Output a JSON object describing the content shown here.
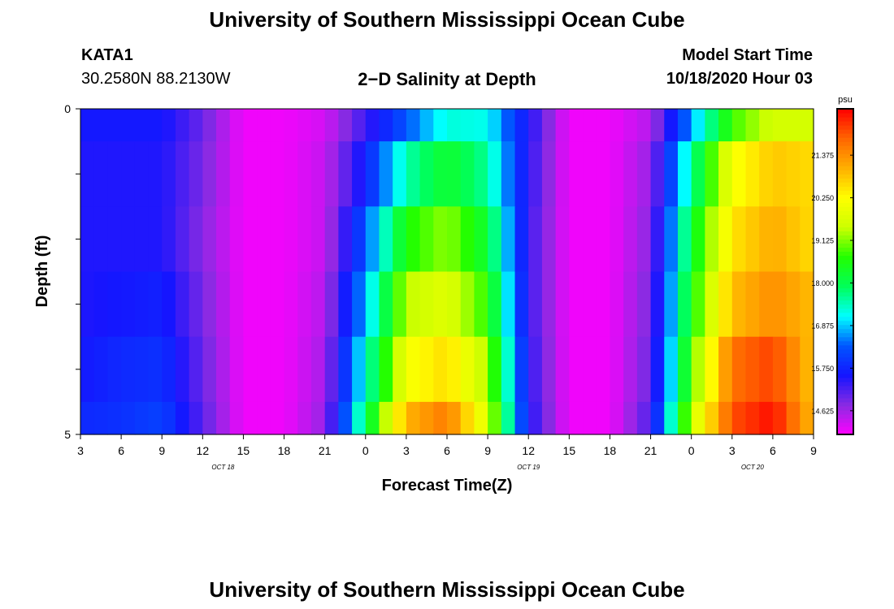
{
  "header": {
    "title": "University of Southern Mississippi Ocean Cube",
    "station": "KATA1",
    "coordinates": "30.2580N 88.2130W",
    "subtitle": "2−D Salinity at Depth",
    "model_start_label": "Model Start Time",
    "model_start_value": "10/18/2020 Hour 03"
  },
  "footer": {
    "title": "University of Southern Mississippi Ocean Cube"
  },
  "chart_data": {
    "type": "heatmap",
    "title": "2−D Salinity at Depth",
    "xlabel": "Forecast Time(Z)",
    "ylabel": "Depth (ft)",
    "x_ticks": [
      "3",
      "6",
      "9",
      "12",
      "15",
      "18",
      "21",
      "0",
      "3",
      "6",
      "9",
      "12",
      "15",
      "18",
      "21",
      "0",
      "3",
      "6",
      "9"
    ],
    "day_labels": [
      {
        "text": "OCT 18",
        "tick_index": 3.5
      },
      {
        "text": "OCT 19",
        "tick_index": 11
      },
      {
        "text": "OCT 20",
        "tick_index": 16.5
      }
    ],
    "y_ticks": [
      "0",
      "",
      "",
      "",
      "",
      "5"
    ],
    "ylim": [
      0,
      5
    ],
    "colorbar": {
      "unit": "psu",
      "ticks": [
        "21.375",
        "20.250",
        "19.125",
        "18.000",
        "16.875",
        "15.750",
        "14.625"
      ],
      "tick_values": [
        21.375,
        20.25,
        19.125,
        18.0,
        16.875,
        15.75,
        14.625
      ],
      "min": 14.0,
      "max": 22.6
    },
    "hours": [
      0,
      3,
      6,
      9,
      12,
      15,
      18,
      21,
      24,
      27,
      30,
      33,
      36,
      39,
      42,
      45,
      48,
      51,
      54
    ],
    "rows": [
      {
        "depth_range": "0-0.5",
        "values": [
          15.6,
          15.6,
          15.6,
          15.0,
          14.1,
          14.1,
          14.3,
          15.3,
          16.3,
          17.3,
          17.2,
          15.5,
          14.1,
          14.1,
          14.5,
          16.7,
          18.8,
          19.6,
          19.6
        ]
      },
      {
        "depth_range": "0.5-1.5",
        "values": [
          15.5,
          15.5,
          15.5,
          14.9,
          14.1,
          14.1,
          14.4,
          15.7,
          17.5,
          18.3,
          17.6,
          15.4,
          14.1,
          14.1,
          14.7,
          17.6,
          20.1,
          20.8,
          20.6
        ]
      },
      {
        "depth_range": "1.5-2.5",
        "values": [
          15.5,
          15.5,
          15.5,
          14.8,
          14.1,
          14.1,
          14.4,
          16.3,
          18.6,
          19.2,
          18.2,
          15.3,
          14.1,
          14.1,
          14.8,
          18.2,
          20.5,
          21.1,
          20.6
        ]
      },
      {
        "depth_range": "2.5-3.5",
        "values": [
          15.5,
          15.6,
          15.7,
          14.9,
          14.1,
          14.1,
          14.5,
          16.8,
          19.4,
          19.8,
          18.7,
          15.3,
          14.1,
          14.1,
          14.9,
          18.5,
          20.9,
          21.4,
          20.9
        ]
      },
      {
        "depth_range": "3.5-4.5",
        "values": [
          15.6,
          15.8,
          15.9,
          15.0,
          14.1,
          14.1,
          14.6,
          17.3,
          20.1,
          20.6,
          19.3,
          15.4,
          14.1,
          14.1,
          15.0,
          18.9,
          21.7,
          22.1,
          20.8
        ]
      },
      {
        "depth_range": "4.5-5",
        "values": [
          15.8,
          15.9,
          16.1,
          15.1,
          14.1,
          14.1,
          14.7,
          17.9,
          21.0,
          21.6,
          19.7,
          15.5,
          14.1,
          14.1,
          15.2,
          19.5,
          22.0,
          22.5,
          20.9
        ]
      }
    ],
    "colormap": [
      "#ff00ff",
      "#8a2be2",
      "#1515ff",
      "#0055ff",
      "#00ffff",
      "#00ff5a",
      "#22ff00",
      "#ccff00",
      "#ffff00",
      "#ffb000",
      "#ff6600",
      "#ff0000"
    ],
    "legend_position": "right"
  }
}
